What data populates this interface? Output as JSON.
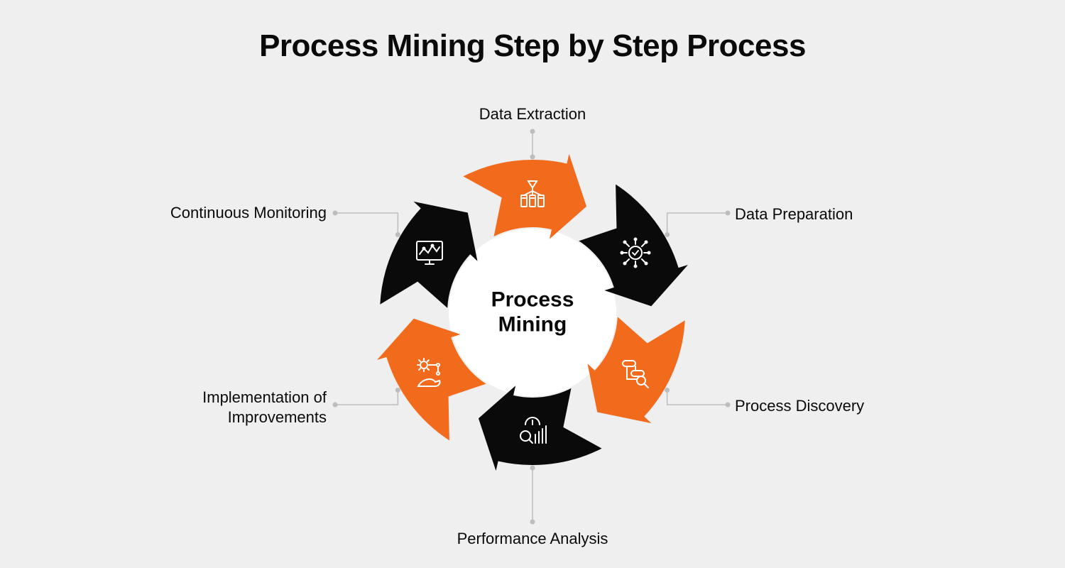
{
  "title": "Process Mining Step by Step Process",
  "center_label_line1": "Process",
  "center_label_line2": "Mining",
  "diagram": {
    "type": "circular-arrow-cycle",
    "background_color": "#efefef",
    "center_bg": "#ffffff",
    "icon_stroke": "#ffffff",
    "connector_color": "#bdbdbd",
    "outer_radius": 215,
    "inner_radius": 120,
    "segment_gap_deg": 6,
    "arrowhead_deg": 14,
    "segments": [
      {
        "label": "Data Extraction",
        "color": "#f26a1b",
        "icon": "extraction",
        "angle_deg": -90,
        "label_side": "top"
      },
      {
        "label": "Data Preparation",
        "color": "#0a0a0a",
        "icon": "preparation",
        "angle_deg": -30,
        "label_side": "right"
      },
      {
        "label": "Process Discovery",
        "color": "#f26a1b",
        "icon": "discovery",
        "angle_deg": 30,
        "label_side": "right"
      },
      {
        "label": "Performance Analysis",
        "color": "#0a0a0a",
        "icon": "analysis",
        "angle_deg": 90,
        "label_side": "bottom"
      },
      {
        "label": "Implementation of\nImprovements",
        "color": "#f26a1b",
        "icon": "improve",
        "angle_deg": 150,
        "label_side": "left"
      },
      {
        "label": "Continuous Monitoring",
        "color": "#0a0a0a",
        "icon": "monitor",
        "angle_deg": 210,
        "label_side": "left"
      }
    ],
    "title_fontsize": 44,
    "label_fontsize": 22,
    "center_fontsize": 30
  }
}
